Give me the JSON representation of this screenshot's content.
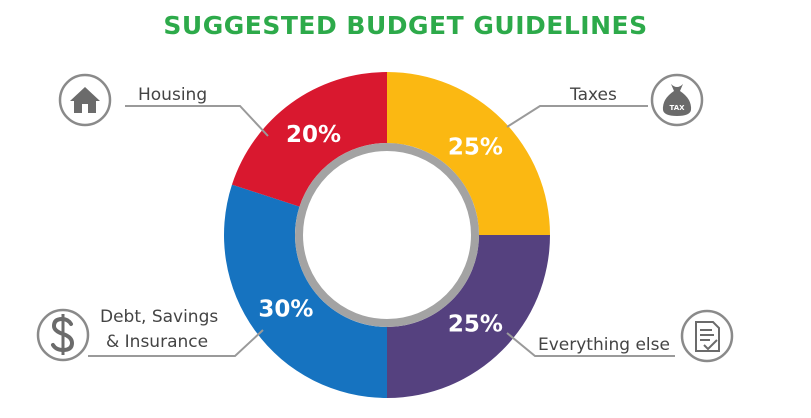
{
  "title": "SUGGESTED BUDGET GUIDELINES",
  "colors": {
    "title": "#2daa4a",
    "housing": "#d9182f",
    "taxes": "#fbb812",
    "everything_else": "#55417f",
    "debt_savings_insurance": "#1673c0",
    "inner_ring": "#a3a3a3",
    "icon": "#6b6b6b"
  },
  "icons": {
    "housing": "house-icon",
    "taxes": "tax-bag-icon",
    "debt_savings_insurance": "dollar-icon",
    "everything_else": "checklist-document-icon"
  },
  "chart_data": {
    "type": "pie",
    "title": "SUGGESTED BUDGET GUIDELINES",
    "donut": true,
    "slices": [
      {
        "label": "Taxes",
        "value": 25,
        "display": "25%",
        "color": "#fbb812"
      },
      {
        "label": "Everything else",
        "value": 25,
        "display": "25%",
        "color": "#55417f"
      },
      {
        "label": "Debt, Savings & Insurance",
        "value": 30,
        "display": "30%",
        "color": "#1673c0"
      },
      {
        "label": "Housing",
        "value": 20,
        "display": "20%",
        "color": "#d9182f"
      }
    ]
  },
  "labels": {
    "housing": "Housing",
    "taxes": "Taxes",
    "everything_else": "Everything else",
    "debt_line1": "Debt, Savings",
    "debt_line2": "& Insurance",
    "tax_icon_text": "TAX"
  }
}
